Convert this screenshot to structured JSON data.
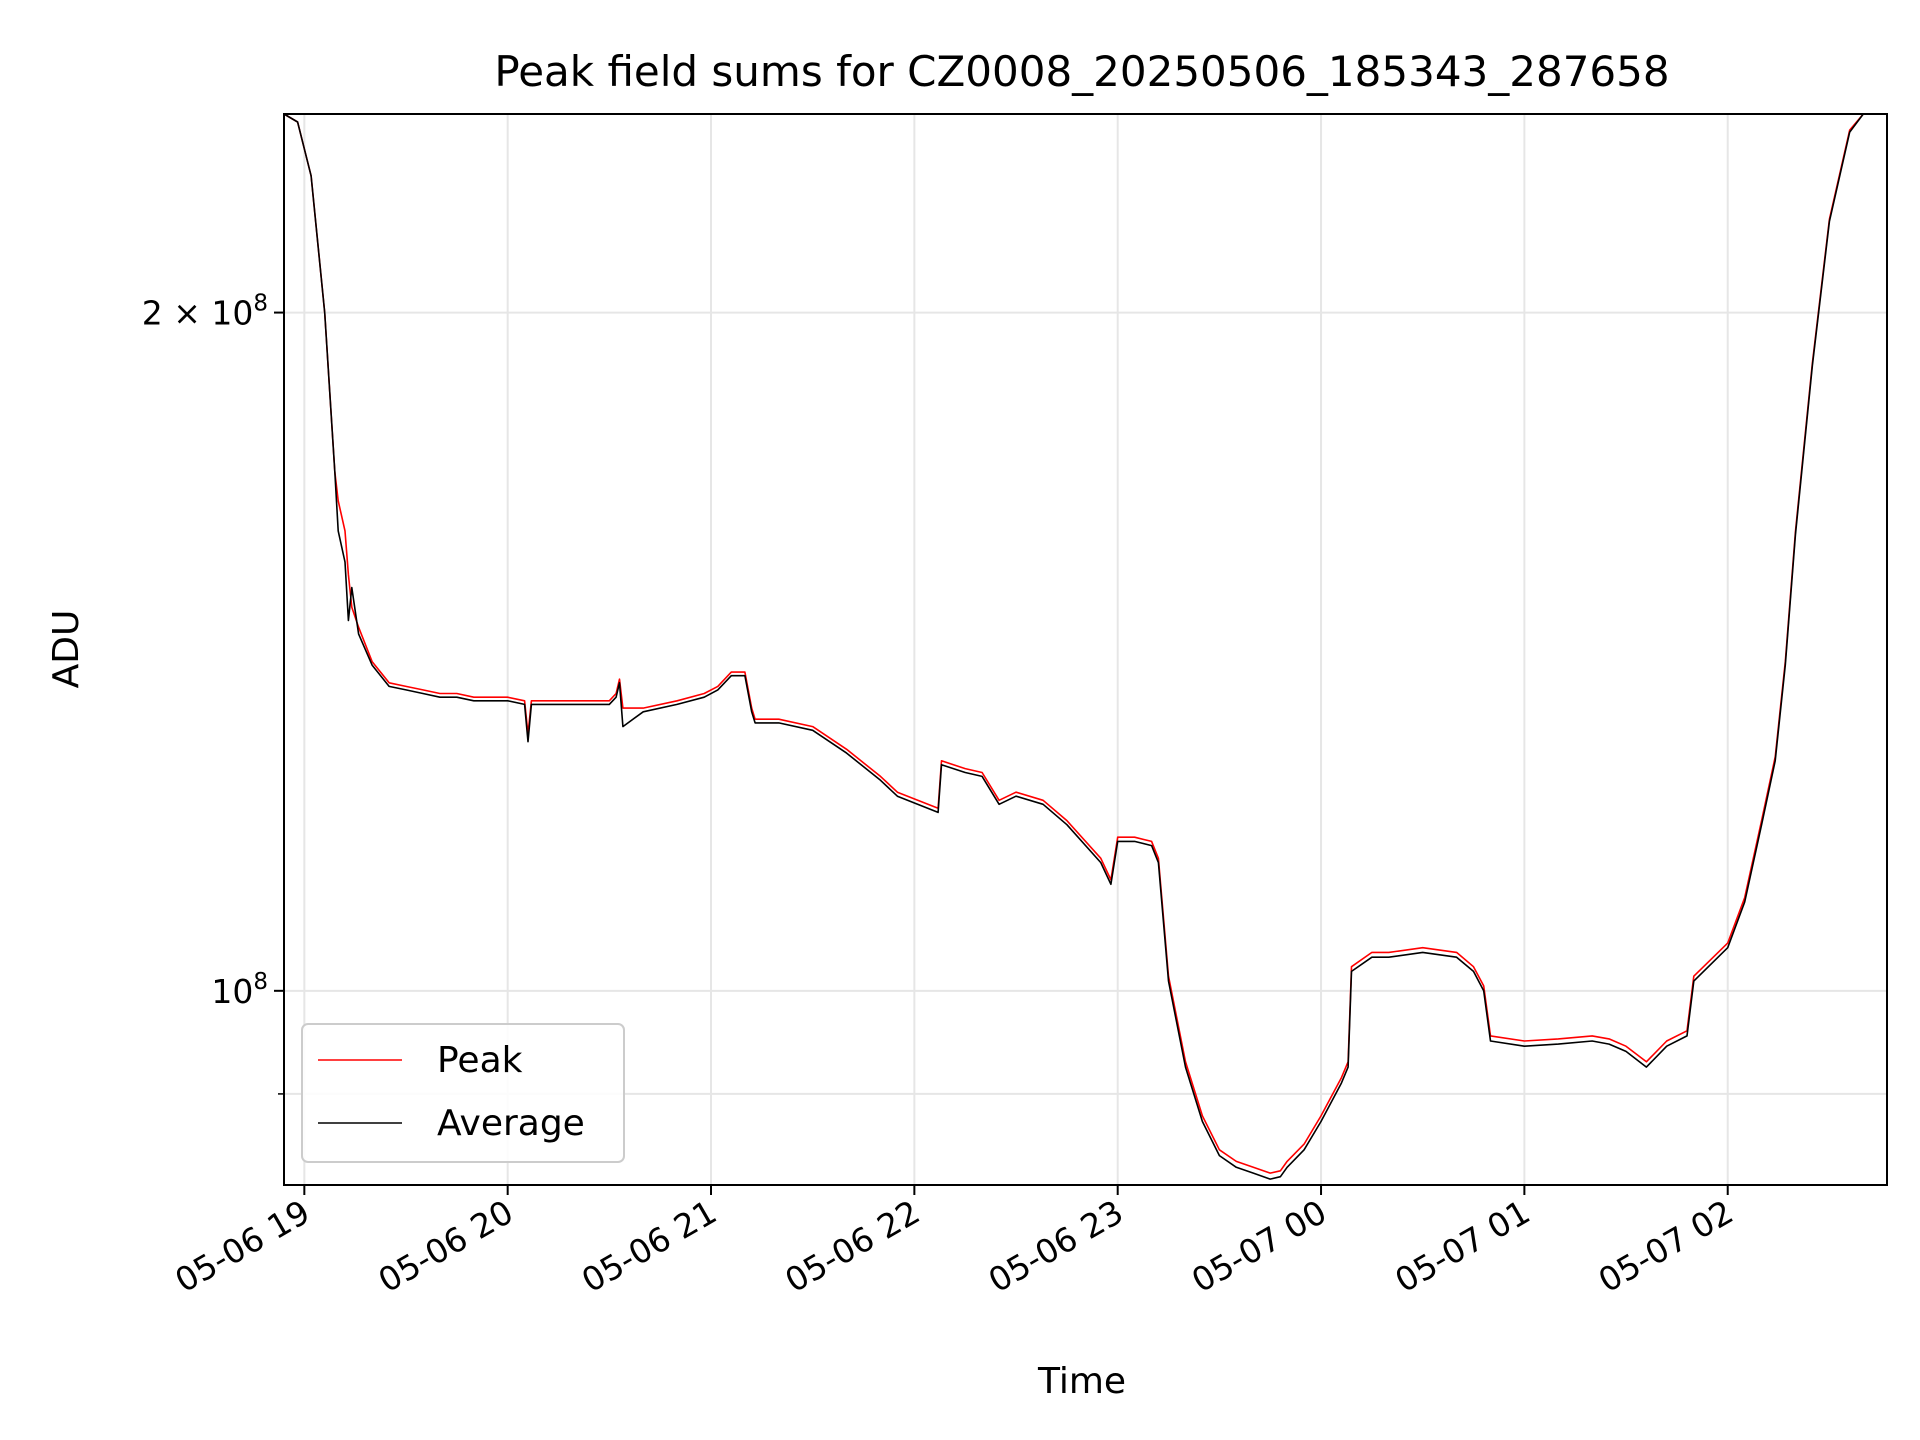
{
  "chart_data": {
    "type": "line",
    "title": "Peak field sums for CZ0008_20250506_185343_287658",
    "xlabel": "Time",
    "ylabel": "ADU",
    "yscale": "log",
    "grid": true,
    "legend_position": "lower-left",
    "xlim": [
      "2025-05-06T18:54",
      "2025-05-07T02:47"
    ],
    "ylim": [
      82000000.0,
      245000000.0
    ],
    "x_ticks": [
      {
        "value": "2025-05-06T19:00",
        "label": "05-06 19"
      },
      {
        "value": "2025-05-06T20:00",
        "label": "05-06 20"
      },
      {
        "value": "2025-05-06T21:00",
        "label": "05-06 21"
      },
      {
        "value": "2025-05-06T22:00",
        "label": "05-06 22"
      },
      {
        "value": "2025-05-06T23:00",
        "label": "05-06 23"
      },
      {
        "value": "2025-05-07T00:00",
        "label": "05-07 00"
      },
      {
        "value": "2025-05-07T01:00",
        "label": "05-07 01"
      },
      {
        "value": "2025-05-07T02:00",
        "label": "05-07 02"
      }
    ],
    "y_ticks": [
      {
        "value": 100000000,
        "base": "10",
        "exp": "8",
        "mult": ""
      },
      {
        "value": 200000000,
        "base": "10",
        "exp": "8",
        "mult": "2 × "
      }
    ],
    "y_minor_ticks": [
      90000000
    ],
    "series": [
      {
        "name": "Peak",
        "color": "#ff0000",
        "x": [
          "2025-05-06T18:54",
          "2025-05-06T18:58",
          "2025-05-06T19:02",
          "2025-05-06T19:06",
          "2025-05-06T19:09",
          "2025-05-06T19:10",
          "2025-05-06T19:12",
          "2025-05-06T19:13",
          "2025-05-06T19:14",
          "2025-05-06T19:16",
          "2025-05-06T19:20",
          "2025-05-06T19:25",
          "2025-05-06T19:30",
          "2025-05-06T19:35",
          "2025-05-06T19:40",
          "2025-05-06T19:45",
          "2025-05-06T19:50",
          "2025-05-06T19:56",
          "2025-05-06T20:00",
          "2025-05-06T20:05",
          "2025-05-06T20:06",
          "2025-05-06T20:07",
          "2025-05-06T20:10",
          "2025-05-06T20:20",
          "2025-05-06T20:30",
          "2025-05-06T20:32",
          "2025-05-06T20:33",
          "2025-05-06T20:34",
          "2025-05-06T20:40",
          "2025-05-06T20:50",
          "2025-05-06T20:58",
          "2025-05-06T21:02",
          "2025-05-06T21:06",
          "2025-05-06T21:10",
          "2025-05-06T21:12",
          "2025-05-06T21:13",
          "2025-05-06T21:20",
          "2025-05-06T21:30",
          "2025-05-06T21:40",
          "2025-05-06T21:50",
          "2025-05-06T21:55",
          "2025-05-06T22:07",
          "2025-05-06T22:08",
          "2025-05-06T22:15",
          "2025-05-06T22:20",
          "2025-05-06T22:25",
          "2025-05-06T22:30",
          "2025-05-06T22:38",
          "2025-05-06T22:45",
          "2025-05-06T22:55",
          "2025-05-06T22:58",
          "2025-05-06T23:00",
          "2025-05-06T23:05",
          "2025-05-06T23:10",
          "2025-05-06T23:12",
          "2025-05-06T23:15",
          "2025-05-06T23:20",
          "2025-05-06T23:25",
          "2025-05-06T23:30",
          "2025-05-06T23:35",
          "2025-05-06T23:40",
          "2025-05-06T23:45",
          "2025-05-06T23:48",
          "2025-05-06T23:50",
          "2025-05-06T23:55",
          "2025-05-07T00:00",
          "2025-05-07T00:06",
          "2025-05-07T00:08",
          "2025-05-07T00:09",
          "2025-05-07T00:15",
          "2025-05-07T00:20",
          "2025-05-07T00:30",
          "2025-05-07T00:40",
          "2025-05-07T00:45",
          "2025-05-07T00:48",
          "2025-05-07T00:50",
          "2025-05-07T01:00",
          "2025-05-07T01:10",
          "2025-05-07T01:20",
          "2025-05-07T01:25",
          "2025-05-07T01:30",
          "2025-05-07T01:36",
          "2025-05-07T01:42",
          "2025-05-07T01:48",
          "2025-05-07T01:50",
          "2025-05-07T02:00",
          "2025-05-07T02:05",
          "2025-05-07T02:10",
          "2025-05-07T02:14",
          "2025-05-07T02:17",
          "2025-05-07T02:20",
          "2025-05-07T02:25",
          "2025-05-07T02:30",
          "2025-05-07T02:36",
          "2025-05-07T02:40",
          "2025-05-07T02:47"
        ],
        "y": [
          245000000,
          243000000,
          230000000,
          200000000,
          170000000,
          165000000,
          160000000,
          153000000,
          148000000,
          145000000,
          140000000,
          137000000,
          136500000,
          136000000,
          135500000,
          135500000,
          135000000,
          135000000,
          135000000,
          134500000,
          130000000,
          134500000,
          134500000,
          134500000,
          134500000,
          135500000,
          137500000,
          133500000,
          133500000,
          134500000,
          135500000,
          136500000,
          138500000,
          138500000,
          133500000,
          132000000,
          132000000,
          131000000,
          128000000,
          124500000,
          122500000,
          120500000,
          126500000,
          125500000,
          125000000,
          121500000,
          122500000,
          121500000,
          119000000,
          114500000,
          112000000,
          117000000,
          117000000,
          116500000,
          114500000,
          101500000,
          93000000,
          88000000,
          85000000,
          84000000,
          83500000,
          83000000,
          83200000,
          84000000,
          85500000,
          88000000,
          91500000,
          93000000,
          102500000,
          104000000,
          104000000,
          104500000,
          104000000,
          102500000,
          100500000,
          95500000,
          95000000,
          95200000,
          95500000,
          95200000,
          94500000,
          93000000,
          95000000,
          96000000,
          101500000,
          105000000,
          110000000,
          119000000,
          127000000,
          140000000,
          160000000,
          190000000,
          220000000,
          241000000,
          245000000,
          245000000
        ]
      },
      {
        "name": "Average",
        "color": "#000000",
        "x": [
          "2025-05-06T18:54",
          "2025-05-06T18:58",
          "2025-05-06T19:02",
          "2025-05-06T19:06",
          "2025-05-06T19:09",
          "2025-05-06T19:10",
          "2025-05-06T19:12",
          "2025-05-06T19:13",
          "2025-05-06T19:14",
          "2025-05-06T19:16",
          "2025-05-06T19:20",
          "2025-05-06T19:25",
          "2025-05-06T19:30",
          "2025-05-06T19:35",
          "2025-05-06T19:40",
          "2025-05-06T19:45",
          "2025-05-06T19:50",
          "2025-05-06T19:56",
          "2025-05-06T20:00",
          "2025-05-06T20:05",
          "2025-05-06T20:06",
          "2025-05-06T20:07",
          "2025-05-06T20:10",
          "2025-05-06T20:20",
          "2025-05-06T20:30",
          "2025-05-06T20:32",
          "2025-05-06T20:33",
          "2025-05-06T20:34",
          "2025-05-06T20:40",
          "2025-05-06T20:50",
          "2025-05-06T20:58",
          "2025-05-06T21:02",
          "2025-05-06T21:06",
          "2025-05-06T21:10",
          "2025-05-06T21:12",
          "2025-05-06T21:13",
          "2025-05-06T21:20",
          "2025-05-06T21:30",
          "2025-05-06T21:40",
          "2025-05-06T21:50",
          "2025-05-06T21:55",
          "2025-05-06T22:07",
          "2025-05-06T22:08",
          "2025-05-06T22:15",
          "2025-05-06T22:20",
          "2025-05-06T22:25",
          "2025-05-06T22:30",
          "2025-05-06T22:38",
          "2025-05-06T22:45",
          "2025-05-06T22:55",
          "2025-05-06T22:58",
          "2025-05-06T23:00",
          "2025-05-06T23:05",
          "2025-05-06T23:10",
          "2025-05-06T23:12",
          "2025-05-06T23:15",
          "2025-05-06T23:20",
          "2025-05-06T23:25",
          "2025-05-06T23:30",
          "2025-05-06T23:35",
          "2025-05-06T23:40",
          "2025-05-06T23:45",
          "2025-05-06T23:48",
          "2025-05-06T23:50",
          "2025-05-06T23:55",
          "2025-05-07T00:00",
          "2025-05-07T00:06",
          "2025-05-07T00:08",
          "2025-05-07T00:09",
          "2025-05-07T00:15",
          "2025-05-07T00:20",
          "2025-05-07T00:30",
          "2025-05-07T00:40",
          "2025-05-07T00:45",
          "2025-05-07T00:48",
          "2025-05-07T00:50",
          "2025-05-07T01:00",
          "2025-05-07T01:10",
          "2025-05-07T01:20",
          "2025-05-07T01:25",
          "2025-05-07T01:30",
          "2025-05-07T01:36",
          "2025-05-07T01:42",
          "2025-05-07T01:48",
          "2025-05-07T01:50",
          "2025-05-07T02:00",
          "2025-05-07T02:05",
          "2025-05-07T02:10",
          "2025-05-07T02:14",
          "2025-05-07T02:17",
          "2025-05-07T02:20",
          "2025-05-07T02:25",
          "2025-05-07T02:30",
          "2025-05-07T02:36",
          "2025-05-07T02:40",
          "2025-05-07T02:47"
        ],
        "y": [
          245000000,
          243000000,
          230000000,
          200000000,
          170000000,
          160000000,
          155000000,
          146000000,
          151000000,
          144000000,
          139500000,
          136500000,
          136000000,
          135500000,
          135000000,
          135000000,
          134500000,
          134500000,
          134500000,
          134000000,
          129000000,
          134000000,
          134000000,
          134000000,
          134000000,
          135000000,
          137000000,
          131000000,
          133000000,
          134000000,
          135000000,
          136000000,
          138000000,
          138000000,
          133000000,
          131500000,
          131500000,
          130500000,
          127500000,
          124000000,
          122000000,
          120000000,
          126000000,
          125000000,
          124500000,
          121000000,
          122000000,
          121000000,
          118500000,
          114000000,
          111500000,
          116500000,
          116500000,
          116000000,
          114000000,
          101000000,
          92500000,
          87500000,
          84500000,
          83500000,
          83000000,
          82500000,
          82700000,
          83500000,
          85000000,
          87500000,
          91000000,
          92500000,
          102000000,
          103500000,
          103500000,
          104000000,
          103500000,
          102000000,
          100000000,
          95000000,
          94500000,
          94700000,
          95000000,
          94700000,
          94000000,
          92500000,
          94500000,
          95500000,
          101000000,
          104500000,
          109500000,
          118500000,
          126500000,
          139500000,
          159500000,
          189500000,
          219500000,
          240500000,
          245000000,
          245000000
        ]
      }
    ]
  }
}
